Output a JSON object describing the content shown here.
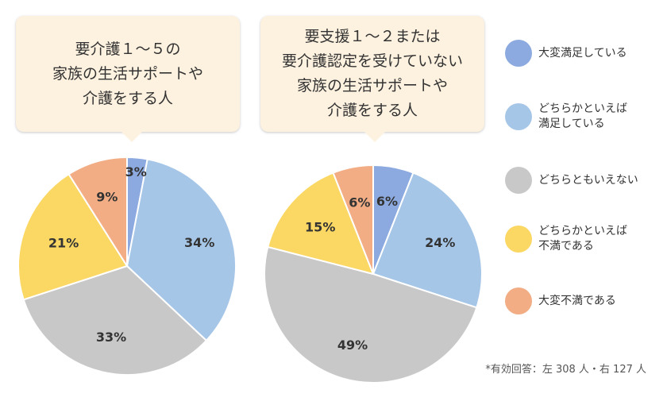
{
  "colors": {
    "very_satisfied": "#8caadf",
    "somewhat_satisfied": "#a6c6e8",
    "neutral": "#c8c8c8",
    "somewhat_dissatisfied": "#fbd763",
    "very_dissatisfied": "#f2ad85",
    "bubble_bg": "#fdf1df"
  },
  "titles": {
    "left": [
      "要介護１～５の",
      "家族の生活サポートや",
      "介護をする人"
    ],
    "right": [
      "要支援１～２または",
      "要介護認定を受けていない",
      "家族の生活サポートや",
      "介護をする人"
    ]
  },
  "legend": [
    {
      "label": "大変満足している",
      "color": "#8caadf"
    },
    {
      "label": "どちらかといえば\n満足している",
      "color": "#a6c6e8"
    },
    {
      "label": "どちらともいえない",
      "color": "#c8c8c8"
    },
    {
      "label": "どちらかといえば\n不満である",
      "color": "#fbd763"
    },
    {
      "label": "大変不満である",
      "color": "#f2ad85"
    }
  ],
  "note": "*有効回答：左 308 人・右 127 人",
  "chart_data": [
    {
      "type": "pie",
      "categories": [
        "大変満足している",
        "どちらかといえば満足している",
        "どちらともいえない",
        "どちらかといえば不満である",
        "大変不満である"
      ],
      "values": [
        3,
        34,
        33,
        21,
        9
      ],
      "labels": [
        "3%",
        "34%",
        "33%",
        "21%",
        "9%"
      ],
      "start": "12 o'clock, clockwise"
    },
    {
      "type": "pie",
      "categories": [
        "大変満足している",
        "どちらかといえば満足している",
        "どちらともいえない",
        "どちらかといえば不満である",
        "大変不満である"
      ],
      "values": [
        6,
        24,
        49,
        15,
        6
      ],
      "labels": [
        "6%",
        "24%",
        "49%",
        "15%",
        "6%"
      ],
      "start": "12 o'clock, clockwise"
    }
  ]
}
